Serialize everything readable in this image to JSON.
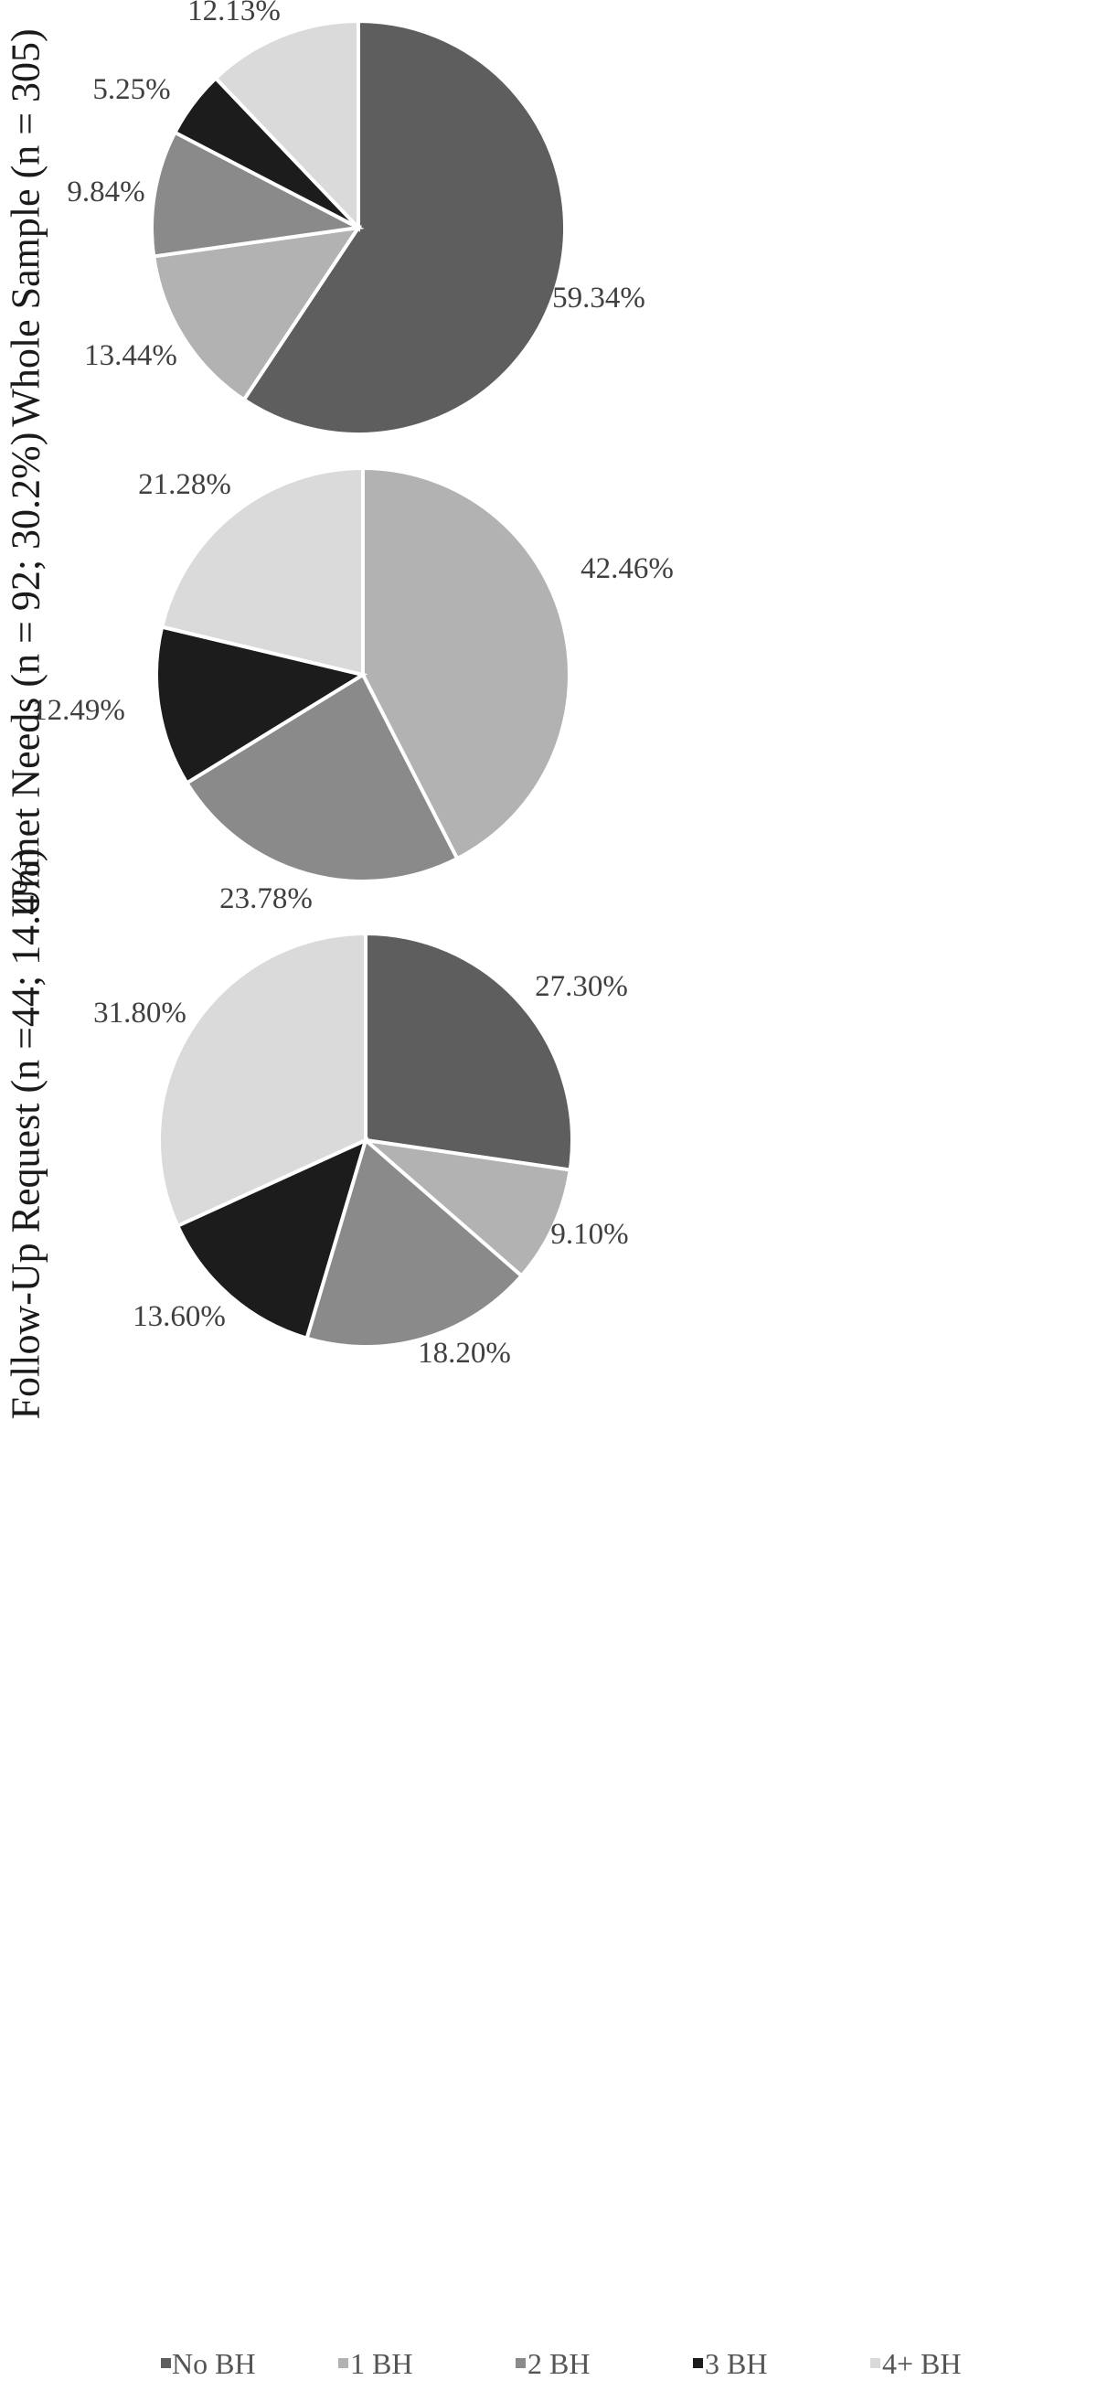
{
  "chart_data": [
    {
      "type": "pie",
      "title": "Whole Sample (n = 305)",
      "categories": [
        "No BH",
        "1 BH",
        "2 BH",
        "3 BH",
        "4+ BH"
      ],
      "values": [
        59.34,
        13.44,
        9.84,
        5.25,
        12.13
      ],
      "labels": [
        "59.34%",
        "13.44%",
        "9.84%",
        "5.25%",
        "12.13%"
      ]
    },
    {
      "type": "pie",
      "title": "Unmet Needs (n = 92; 30.2%)",
      "categories": [
        "No BH",
        "1 BH",
        "2 BH",
        "3 BH",
        "4+ BH"
      ],
      "values": [
        0,
        42.46,
        23.78,
        12.49,
        21.28
      ],
      "labels": [
        "",
        "42.46%",
        "23.78%",
        "12.49%",
        "21.28%"
      ]
    },
    {
      "type": "pie",
      "title": "Follow-Up Request (n =44; 14.4%)",
      "categories": [
        "No BH",
        "1 BH",
        "2 BH",
        "3 BH",
        "4+ BH"
      ],
      "values": [
        27.3,
        9.1,
        18.2,
        13.6,
        31.8
      ],
      "labels": [
        "27.30%",
        "9.10%",
        "18.20%",
        "13.60%",
        "31.80%"
      ]
    }
  ],
  "legend": {
    "placement": "bottom",
    "items": [
      {
        "label": "No BH",
        "color": "#5e5e5e"
      },
      {
        "label": "1 BH",
        "color": "#b2b2b2"
      },
      {
        "label": "2 BH",
        "color": "#8a8a8a"
      },
      {
        "label": "3 BH",
        "color": "#1c1c1c"
      },
      {
        "label": "4+ BH",
        "color": "#dadada"
      }
    ]
  }
}
